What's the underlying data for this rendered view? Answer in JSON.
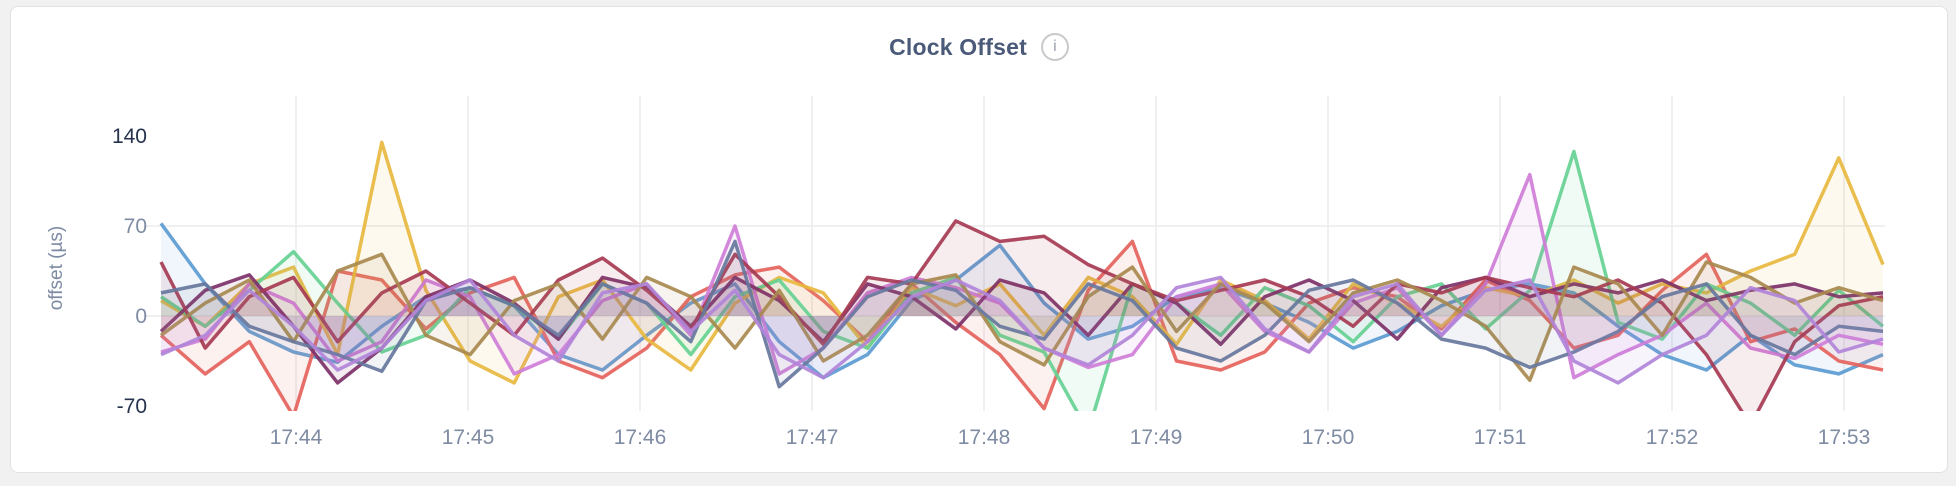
{
  "page": {
    "background": "#f1f1f2"
  },
  "card": {
    "background": "#ffffff",
    "border_color": "#e2e2e4"
  },
  "header": {
    "title": "Clock Offset",
    "info_icon_glyph": "i"
  },
  "chart_data": {
    "type": "line",
    "title": "Clock Offset",
    "xlabel": "",
    "ylabel": "offset (µs)",
    "ylim": [
      -70,
      140
    ],
    "grid": {
      "horizontal_values": [
        70,
        0
      ],
      "vertical_at_each_x_tick": true,
      "color": "#ebebec",
      "legend_position": "none"
    },
    "y_ticks": [
      {
        "value": 140,
        "label": "140",
        "emphasis": true
      },
      {
        "value": 70,
        "label": "70",
        "emphasis": false
      },
      {
        "value": 0,
        "label": "0",
        "emphasis": false
      },
      {
        "value": -70,
        "label": "-70",
        "emphasis": true
      }
    ],
    "x_ticks": [
      "17:44",
      "17:45",
      "17:46",
      "17:47",
      "17:48",
      "17:49",
      "17:50",
      "17:51",
      "17:52",
      "17:53"
    ],
    "x_range_note": "points evenly spaced ~15s apart, from ~17:43:20 to ~17:53:05",
    "series": [
      {
        "color": "#5c9bd3",
        "values": [
          72,
          25,
          -12,
          -28,
          -36,
          -8,
          15,
          22,
          8,
          -30,
          -42,
          -15,
          10,
          25,
          -20,
          -48,
          -30,
          12,
          28,
          55,
          10,
          -18,
          -8,
          15,
          22,
          10,
          -5,
          -25,
          -12,
          8,
          20,
          25,
          18,
          -8,
          -30,
          -42,
          -15,
          -38,
          -45,
          -30
        ]
      },
      {
        "color": "#e5635c",
        "values": [
          -15,
          -45,
          -20,
          -78,
          35,
          28,
          -10,
          18,
          30,
          -35,
          -48,
          -25,
          15,
          32,
          38,
          12,
          -20,
          25,
          -5,
          -30,
          -72,
          20,
          58,
          -35,
          -42,
          -28,
          10,
          22,
          15,
          -10,
          28,
          12,
          -25,
          -15,
          20,
          48,
          -20,
          -10,
          -35,
          -42
        ]
      },
      {
        "color": "#e8b93f",
        "values": [
          12,
          -8,
          25,
          38,
          -30,
          135,
          20,
          -35,
          -52,
          15,
          28,
          -18,
          -42,
          10,
          30,
          18,
          -25,
          22,
          8,
          25,
          -15,
          30,
          15,
          -22,
          28,
          12,
          -18,
          25,
          10,
          -8,
          22,
          15,
          28,
          10,
          25,
          18,
          35,
          48,
          123,
          40
        ]
      },
      {
        "color": "#66d192",
        "values": [
          15,
          -8,
          20,
          50,
          10,
          -28,
          -15,
          22,
          8,
          -18,
          25,
          10,
          -30,
          15,
          28,
          -12,
          -25,
          18,
          30,
          -15,
          -28,
          -90,
          25,
          10,
          -15,
          22,
          8,
          -20,
          15,
          25,
          -10,
          20,
          128,
          -5,
          -18,
          25,
          10,
          -15,
          20,
          -8
        ]
      },
      {
        "color": "#cf7ed8",
        "values": [
          -28,
          -18,
          25,
          10,
          -35,
          -20,
          28,
          15,
          -45,
          -30,
          12,
          25,
          -15,
          70,
          -45,
          -25,
          18,
          30,
          22,
          10,
          -25,
          -40,
          -30,
          15,
          25,
          -12,
          -28,
          10,
          22,
          -15,
          25,
          110,
          -48,
          -30,
          -15,
          10,
          -25,
          -33,
          -15,
          -22
        ]
      },
      {
        "color": "#7d3168",
        "values": [
          -12,
          20,
          32,
          -8,
          -52,
          -25,
          15,
          28,
          10,
          -18,
          30,
          22,
          -8,
          30,
          12,
          -20,
          25,
          15,
          -10,
          28,
          18,
          -15,
          25,
          10,
          -22,
          15,
          28,
          12,
          -18,
          22,
          30,
          15,
          25,
          18,
          28,
          12,
          20,
          25,
          15,
          18
        ]
      },
      {
        "color": "#a63a52",
        "values": [
          42,
          -25,
          15,
          30,
          -20,
          18,
          35,
          10,
          -15,
          28,
          45,
          20,
          -10,
          48,
          15,
          -22,
          30,
          25,
          74,
          58,
          62,
          40,
          25,
          12,
          20,
          28,
          15,
          -8,
          25,
          18,
          30,
          22,
          15,
          28,
          10,
          -30,
          -85,
          -20,
          8,
          15
        ]
      },
      {
        "color": "#a8894e",
        "values": [
          -15,
          10,
          28,
          -20,
          35,
          48,
          -15,
          -30,
          12,
          25,
          -18,
          30,
          15,
          -25,
          20,
          -35,
          -15,
          25,
          32,
          -20,
          -38,
          15,
          38,
          -12,
          25,
          10,
          -20,
          18,
          28,
          12,
          -8,
          -50,
          38,
          25,
          -15,
          42,
          30,
          10,
          22,
          12
        ]
      },
      {
        "color": "#67779d",
        "values": [
          18,
          25,
          -8,
          -20,
          -30,
          -43,
          12,
          22,
          8,
          -15,
          25,
          10,
          -20,
          58,
          -55,
          -25,
          15,
          28,
          20,
          -8,
          -18,
          25,
          12,
          -25,
          -35,
          -15,
          20,
          28,
          10,
          -18,
          -25,
          -40,
          -28,
          -12,
          15,
          25,
          -15,
          -30,
          -8,
          -12
        ]
      },
      {
        "color": "#b184d9",
        "values": [
          -30,
          -15,
          20,
          -8,
          -42,
          -25,
          12,
          28,
          -15,
          -35,
          18,
          25,
          -12,
          20,
          -30,
          -48,
          -20,
          15,
          28,
          12,
          -25,
          -38,
          -15,
          22,
          30,
          -10,
          -28,
          15,
          25,
          -15,
          20,
          28,
          -35,
          -52,
          -30,
          -15,
          22,
          12,
          -28,
          -18
        ]
      }
    ]
  }
}
